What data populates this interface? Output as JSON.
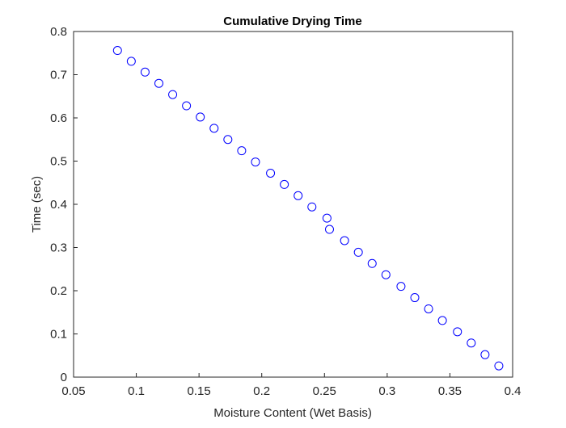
{
  "chart_data": {
    "type": "scatter",
    "title": "Cumulative Drying Time",
    "xlabel": "Moisture Content (Wet Basis)",
    "ylabel": "Time (sec)",
    "xlim": [
      0.05,
      0.4
    ],
    "ylim": [
      0,
      0.8
    ],
    "xticks": [
      "0.05",
      "0.1",
      "0.15",
      "0.2",
      "0.25",
      "0.3",
      "0.35",
      "0.4"
    ],
    "yticks": [
      "0",
      "0.1",
      "0.2",
      "0.3",
      "0.4",
      "0.5",
      "0.6",
      "0.7",
      "0.8"
    ],
    "grid": false,
    "marker": "open-circle",
    "marker_color": "#0000ff",
    "x": [
      0.389,
      0.378,
      0.367,
      0.356,
      0.344,
      0.333,
      0.322,
      0.311,
      0.299,
      0.288,
      0.277,
      0.266,
      0.254,
      0.252,
      0.24,
      0.229,
      0.218,
      0.207,
      0.195,
      0.184,
      0.173,
      0.162,
      0.151,
      0.14,
      0.129,
      0.118,
      0.107,
      0.096,
      0.085
    ],
    "y": [
      0.026,
      0.052,
      0.079,
      0.105,
      0.131,
      0.158,
      0.184,
      0.21,
      0.237,
      0.263,
      0.289,
      0.316,
      0.342,
      0.368,
      0.394,
      0.42,
      0.446,
      0.472,
      0.498,
      0.524,
      0.55,
      0.576,
      0.602,
      0.628,
      0.654,
      0.68,
      0.706,
      0.731,
      0.756
    ]
  }
}
